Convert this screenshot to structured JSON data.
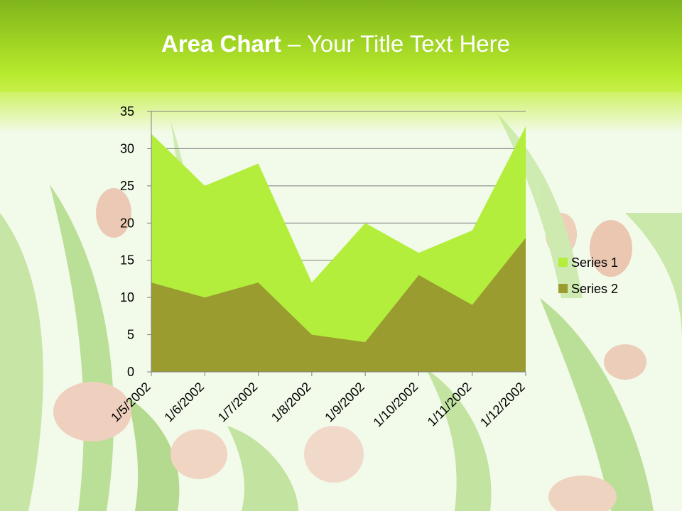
{
  "slide": {
    "title_bold": "Area Chart",
    "title_rest": " – Your Title Text Here"
  },
  "colors": {
    "header": "#9fd323",
    "series1": "#b3ee3c",
    "series2": "#9a9c30",
    "grid": "#808080",
    "title_text": "#ffffff"
  },
  "chart_data": {
    "type": "area",
    "title": "",
    "xlabel": "",
    "ylabel": "",
    "categories": [
      "1/5/2002",
      "1/6/2002",
      "1/7/2002",
      "1/8/2002",
      "1/9/2002",
      "1/10/2002",
      "1/11/2002",
      "1/12/2002"
    ],
    "ylim": [
      0,
      35
    ],
    "yticks": [
      0,
      5,
      10,
      15,
      20,
      25,
      30,
      35
    ],
    "grid": true,
    "legend_position": "right",
    "series": [
      {
        "name": "Series 1",
        "values": [
          32,
          25,
          28,
          12,
          20,
          16,
          19,
          33
        ]
      },
      {
        "name": "Series 2",
        "values": [
          12,
          10,
          12,
          5,
          4,
          13,
          9,
          18
        ]
      }
    ]
  }
}
